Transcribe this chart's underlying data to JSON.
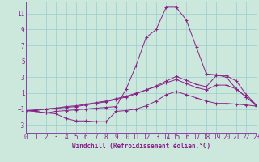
{
  "xlabel": "Windchill (Refroidissement éolien,°C)",
  "bg_color": "#cce8dd",
  "grid_color": "#99cccc",
  "line_color": "#882288",
  "spine_color": "#8844aa",
  "xlim": [
    0,
    23
  ],
  "ylim": [
    -4,
    12.5
  ],
  "xticks": [
    0,
    1,
    2,
    3,
    4,
    5,
    6,
    7,
    8,
    9,
    10,
    11,
    12,
    13,
    14,
    15,
    16,
    17,
    18,
    19,
    20,
    21,
    22,
    23
  ],
  "yticks": [
    -3,
    -1,
    1,
    3,
    5,
    7,
    9,
    11
  ],
  "curve_main": {
    "x": [
      0,
      1,
      2,
      3,
      4,
      5,
      6,
      7,
      8,
      9,
      10,
      11,
      12,
      13,
      14,
      15,
      16,
      17,
      18,
      19,
      20,
      21,
      22,
      23
    ],
    "y": [
      -1.2,
      -1.3,
      -1.5,
      -1.3,
      -1.2,
      -1.1,
      -1.0,
      -0.9,
      -0.8,
      -0.7,
      1.5,
      4.5,
      8.0,
      9.0,
      11.8,
      11.8,
      10.2,
      6.8,
      3.4,
      3.3,
      3.0,
      1.5,
      0.5,
      -0.65
    ]
  },
  "curve_dip": {
    "x": [
      0,
      1,
      2,
      3,
      4,
      5,
      6,
      7,
      8,
      9,
      10,
      11,
      12,
      13,
      14,
      15,
      16,
      17,
      18,
      19,
      20,
      21,
      22,
      23
    ],
    "y": [
      -1.2,
      -1.3,
      -1.5,
      -1.6,
      -2.2,
      -2.5,
      -2.5,
      -2.6,
      -2.6,
      -1.3,
      -1.2,
      -1.0,
      -0.6,
      0.0,
      0.8,
      1.2,
      0.8,
      0.4,
      0.0,
      -0.3,
      -0.3,
      -0.4,
      -0.5,
      -0.65
    ]
  },
  "curve_upper": {
    "x": [
      0,
      1,
      2,
      3,
      4,
      5,
      6,
      7,
      8,
      9,
      10,
      11,
      12,
      13,
      14,
      15,
      16,
      17,
      18,
      19,
      20,
      21,
      22,
      23
    ],
    "y": [
      -1.2,
      -1.1,
      -1.0,
      -0.9,
      -0.8,
      -0.7,
      -0.5,
      -0.3,
      -0.1,
      0.2,
      0.5,
      0.9,
      1.4,
      1.9,
      2.5,
      3.1,
      2.6,
      2.1,
      1.8,
      3.2,
      3.2,
      2.5,
      0.8,
      -0.5
    ]
  },
  "curve_lower_flat": {
    "x": [
      0,
      1,
      2,
      3,
      4,
      5,
      6,
      7,
      8,
      9,
      10,
      11,
      12,
      13,
      14,
      15,
      16,
      17,
      18,
      19,
      20,
      21,
      22,
      23
    ],
    "y": [
      -1.2,
      -1.2,
      -1.0,
      -0.9,
      -0.7,
      -0.6,
      -0.4,
      -0.2,
      0.0,
      0.3,
      0.6,
      1.0,
      1.4,
      1.8,
      2.3,
      2.7,
      2.2,
      1.7,
      1.4,
      2.0,
      2.0,
      1.5,
      0.5,
      -0.5
    ]
  }
}
